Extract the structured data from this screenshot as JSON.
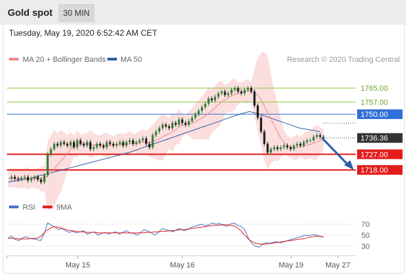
{
  "header": {
    "title": "Gold spot",
    "timeframe_button": "30 MIN"
  },
  "chart_timestamp": "Tuesday, May 19, 2020 6:52:42 AM CET",
  "legend": {
    "ma20": {
      "label": "MA 20 + Bollinger Bands",
      "color": "#f08c8c"
    },
    "ma50": {
      "label": "MA 50",
      "color": "#2d5fa8"
    }
  },
  "copyright": "Research © 2020 Trading Central",
  "rsi_legend": {
    "rsi": {
      "label": "RSI",
      "color": "#4a72c9"
    },
    "ma9": {
      "label": "9MA",
      "color": "#e02020"
    }
  },
  "chart_data": {
    "type": "candlestick",
    "price_levels": [
      {
        "label": "1765.00",
        "value": 1765.0,
        "color": "#8dc63f",
        "kind": "resistance"
      },
      {
        "label": "1757.00",
        "value": 1757.0,
        "color": "#8dc63f",
        "kind": "resistance"
      },
      {
        "label": "1750.00",
        "value": 1750.0,
        "color": "#2f6fd6",
        "kind": "pivot"
      },
      {
        "label": "1736.36",
        "value": 1736.36,
        "color": "#333333",
        "kind": "last_price"
      },
      {
        "label": "1727.00",
        "value": 1727.0,
        "color": "#e31b1b",
        "kind": "support"
      },
      {
        "label": "1718.00",
        "value": 1718.0,
        "color": "#e31b1b",
        "kind": "support"
      }
    ],
    "x_ticks": [
      "May 15",
      "May 16",
      "May 19",
      "May 27"
    ],
    "rsi_ticks": [
      70,
      50,
      30
    ],
    "close_path": [
      1713,
      1714,
      1713,
      1712.5,
      1713.5,
      1714,
      1712,
      1713,
      1714,
      1712.5,
      1711,
      1715,
      1727,
      1730,
      1733,
      1732,
      1734,
      1733,
      1732,
      1734,
      1731,
      1735,
      1733,
      1732,
      1734,
      1730,
      1731,
      1733,
      1732,
      1731,
      1734,
      1733,
      1732,
      1733,
      1734,
      1732,
      1734,
      1735,
      1733,
      1734,
      1735,
      1736,
      1733,
      1731,
      1738,
      1740,
      1742,
      1744,
      1743,
      1742,
      1745,
      1744,
      1747,
      1745,
      1744,
      1746,
      1748,
      1750,
      1752,
      1754,
      1756,
      1759,
      1758,
      1760,
      1762,
      1763,
      1761,
      1762,
      1764,
      1765,
      1763,
      1762,
      1764,
      1765,
      1763,
      1755,
      1748,
      1740,
      1733,
      1728,
      1730,
      1731,
      1730,
      1731,
      1732,
      1731,
      1730,
      1732,
      1733,
      1732,
      1734,
      1735,
      1735,
      1737,
      1738,
      1737,
      1736.36
    ],
    "rsi_path": [
      45,
      48,
      42,
      40,
      45,
      47,
      44,
      43,
      42,
      40,
      52,
      72,
      68,
      65,
      60,
      62,
      58,
      55,
      57,
      54,
      56,
      58,
      52,
      54,
      56,
      50,
      53,
      55,
      52,
      54,
      56,
      52,
      55,
      58,
      54,
      53,
      50,
      55,
      60,
      57,
      54,
      50,
      56,
      62,
      60,
      58,
      56,
      60,
      62,
      58,
      60,
      64,
      66,
      68,
      70,
      67,
      69,
      72,
      70,
      71,
      68,
      66,
      70,
      72,
      68,
      66,
      60,
      45,
      35,
      30,
      28,
      34,
      36,
      35,
      37,
      38,
      36,
      38,
      40,
      42,
      44,
      46,
      48,
      50,
      49,
      51,
      50,
      48,
      46
    ],
    "rsi_ma_path": [
      44,
      44,
      44,
      43,
      43,
      43,
      44,
      44,
      45,
      50,
      57,
      62,
      65,
      65,
      63,
      61,
      59,
      58,
      57,
      56,
      56,
      55,
      55,
      55,
      54,
      54,
      54,
      54,
      54,
      54,
      54,
      54,
      54,
      54,
      54,
      54,
      54,
      55,
      55,
      56,
      56,
      57,
      57,
      58,
      58,
      59,
      60,
      60,
      61,
      62,
      63,
      64,
      65,
      66,
      67,
      68,
      68,
      69,
      69,
      68,
      67,
      64,
      58,
      50,
      43,
      38,
      35,
      34,
      33,
      34,
      35,
      36,
      37,
      38,
      39,
      40,
      41,
      42,
      43,
      44,
      46,
      47,
      48,
      48,
      47
    ],
    "ma50_path": [
      1711,
      1712,
      1713,
      1714.5,
      1716,
      1717.5,
      1719,
      1720.5,
      1722,
      1723.5,
      1725,
      1726.5,
      1728,
      1730,
      1732,
      1734,
      1736,
      1738,
      1740,
      1742,
      1744,
      1746,
      1748,
      1750,
      1751.5,
      1750,
      1748,
      1746,
      1744,
      1742,
      1741,
      1740
    ]
  }
}
